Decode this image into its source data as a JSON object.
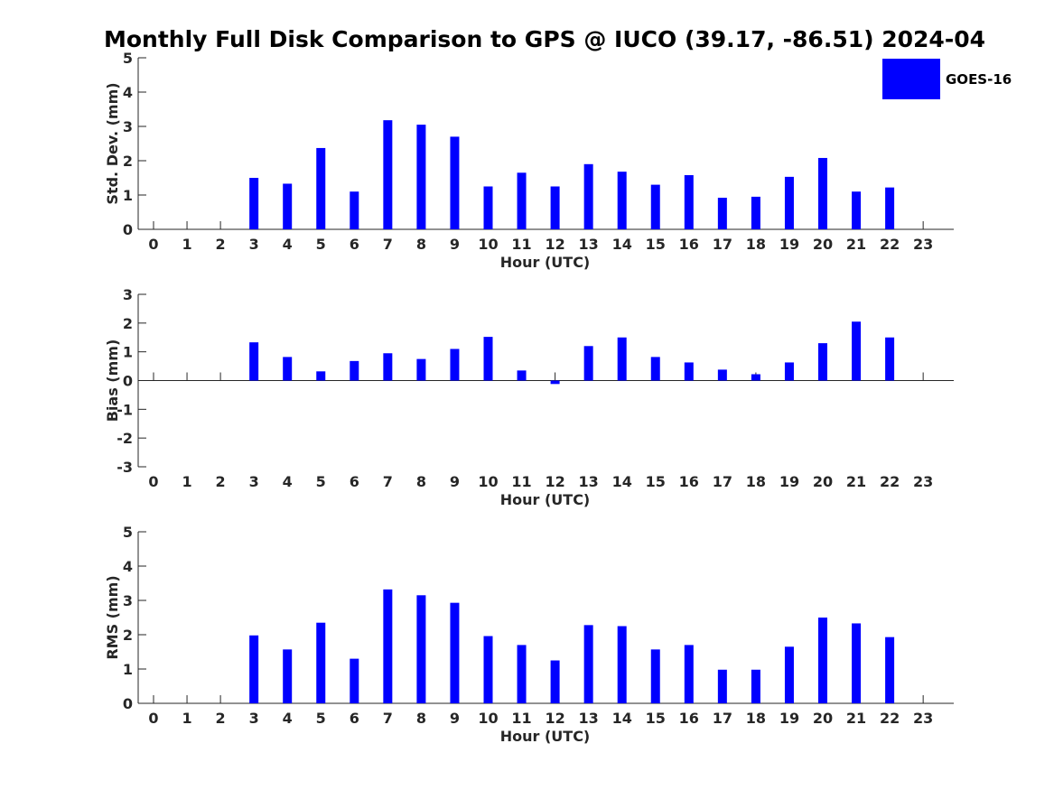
{
  "title": "Monthly Full Disk Comparison to GPS @ IUCO (39.17, -86.51) 2024-04",
  "legend": {
    "label": "GOES-16",
    "color": "#0000ff"
  },
  "chart_data": [
    {
      "type": "bar",
      "name": "std",
      "xlabel": "Hour (UTC)",
      "ylabel": "Std. Dev. (mm)",
      "ylim": [
        0,
        5
      ],
      "yticks": [
        "0",
        "1",
        "2",
        "3",
        "4",
        "5"
      ],
      "categories": [
        "0",
        "1",
        "2",
        "3",
        "4",
        "5",
        "6",
        "7",
        "8",
        "9",
        "10",
        "11",
        "12",
        "13",
        "14",
        "15",
        "16",
        "17",
        "18",
        "19",
        "20",
        "21",
        "22",
        "23"
      ],
      "values": [
        null,
        null,
        null,
        1.5,
        1.33,
        2.37,
        1.1,
        3.18,
        3.05,
        2.7,
        1.25,
        1.65,
        1.25,
        1.9,
        1.68,
        1.3,
        1.58,
        0.92,
        0.95,
        1.53,
        2.08,
        1.1,
        1.22,
        null
      ],
      "color": "#0000ff",
      "legend": "top-right"
    },
    {
      "type": "bar",
      "name": "bias",
      "xlabel": "Hour (UTC)",
      "ylabel": "Bias (mm)",
      "ylim": [
        -3,
        3
      ],
      "yticks": [
        "-3",
        "-2",
        "-1",
        "0",
        "1",
        "2",
        "3"
      ],
      "categories": [
        "0",
        "1",
        "2",
        "3",
        "4",
        "5",
        "6",
        "7",
        "8",
        "9",
        "10",
        "11",
        "12",
        "13",
        "14",
        "15",
        "16",
        "17",
        "18",
        "19",
        "20",
        "21",
        "22",
        "23"
      ],
      "values": [
        null,
        null,
        null,
        1.33,
        0.82,
        0.32,
        0.68,
        0.95,
        0.75,
        1.1,
        1.52,
        0.35,
        -0.12,
        1.2,
        1.5,
        0.82,
        0.63,
        0.38,
        0.22,
        0.63,
        1.3,
        2.05,
        1.5,
        null
      ],
      "color": "#0000ff"
    },
    {
      "type": "bar",
      "name": "rms",
      "xlabel": "Hour (UTC)",
      "ylabel": "RMS (mm)",
      "ylim": [
        0,
        5
      ],
      "yticks": [
        "0",
        "1",
        "2",
        "3",
        "4",
        "5"
      ],
      "categories": [
        "0",
        "1",
        "2",
        "3",
        "4",
        "5",
        "6",
        "7",
        "8",
        "9",
        "10",
        "11",
        "12",
        "13",
        "14",
        "15",
        "16",
        "17",
        "18",
        "19",
        "20",
        "21",
        "22",
        "23"
      ],
      "values": [
        null,
        null,
        null,
        1.98,
        1.57,
        2.35,
        1.3,
        3.32,
        3.15,
        2.93,
        1.96,
        1.7,
        1.25,
        2.28,
        2.25,
        1.57,
        1.7,
        0.98,
        0.98,
        1.65,
        2.5,
        2.33,
        1.93,
        null
      ],
      "color": "#0000ff"
    }
  ]
}
